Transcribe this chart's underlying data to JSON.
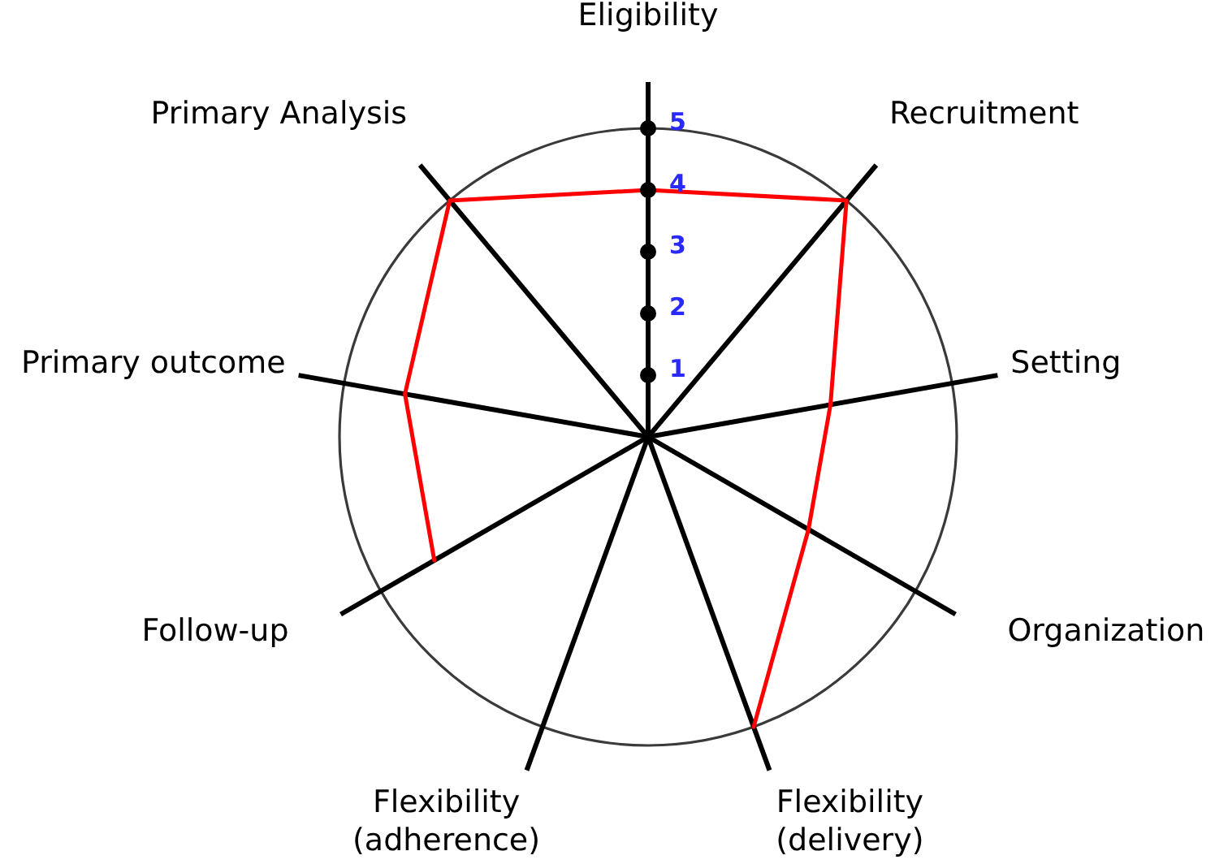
{
  "chart_data": {
    "type": "radar",
    "categories": [
      "Eligibility",
      "Recruitment",
      "Setting",
      "Organization",
      "Flexibility\n(delivery)",
      "Flexibility\n(adherence)",
      "Follow-up",
      "Primary outcome",
      "Primary Analysis"
    ],
    "ylim": [
      0,
      5
    ],
    "yticks": [
      1,
      2,
      3,
      4,
      5
    ],
    "series": [
      {
        "color": "#ff0000",
        "values": [
          4,
          5,
          3,
          3,
          5,
          null,
          4,
          4,
          5
        ]
      }
    ]
  }
}
